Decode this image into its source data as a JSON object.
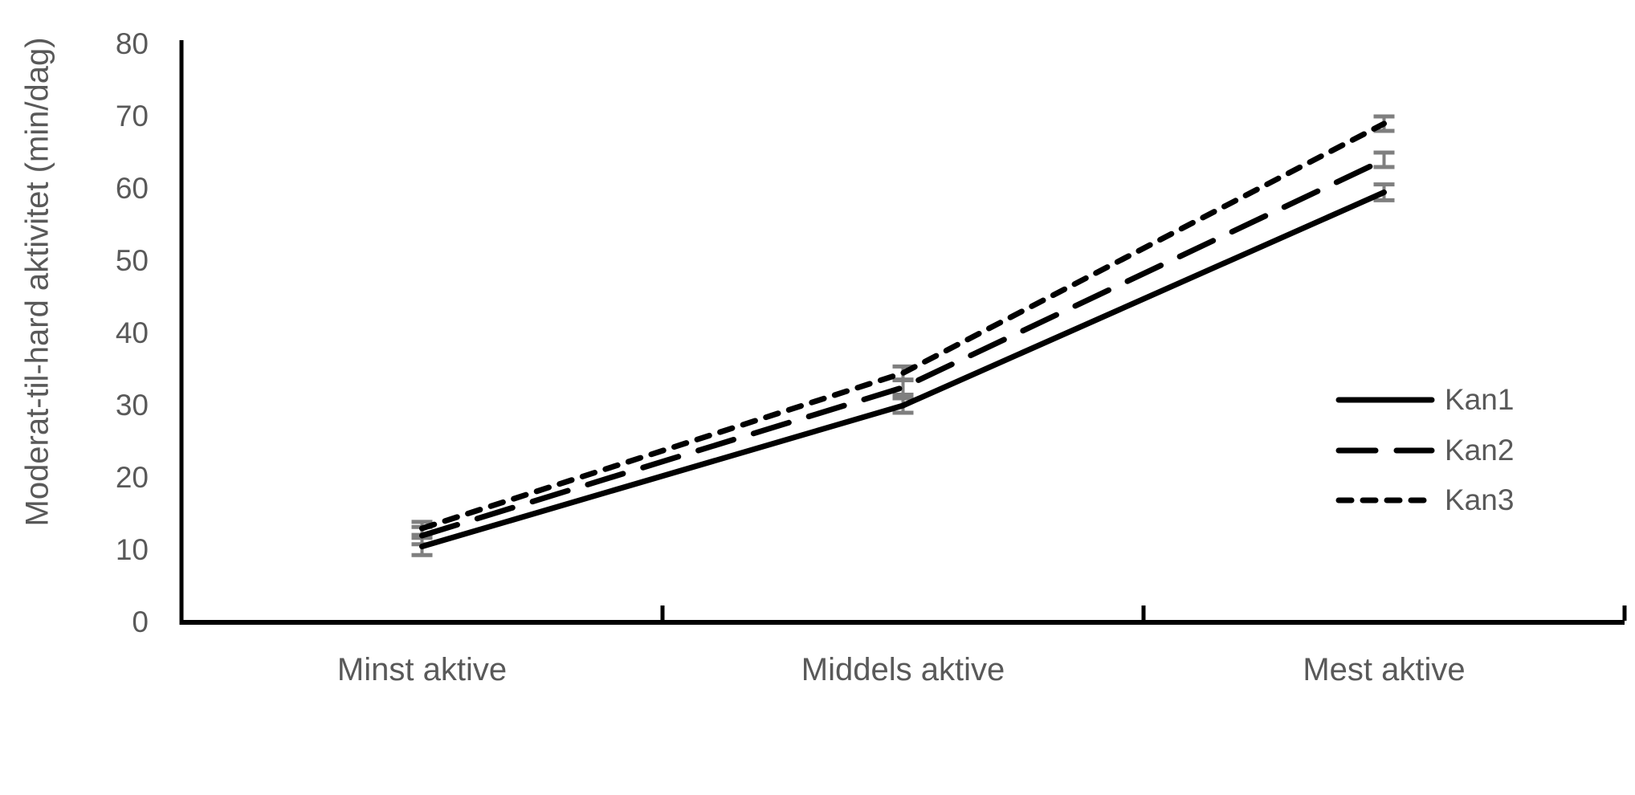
{
  "chart_data": {
    "type": "line",
    "title": "",
    "xlabel": "",
    "ylabel": "Moderat-til-hard aktivitet (min/dag)",
    "categories": [
      "Minst aktive",
      "Middels aktive",
      "Mest aktive"
    ],
    "series": [
      {
        "name": "Kan1",
        "line_style": "solid",
        "color": "#000000",
        "values": [
          10.5,
          30.0,
          59.5
        ],
        "error_bars": [
          1.2,
          1.0,
          1.1
        ]
      },
      {
        "name": "Kan2",
        "line_style": "long-dash",
        "color": "#000000",
        "values": [
          12.0,
          32.5,
          64.0
        ],
        "error_bars": [
          1.2,
          1.0,
          1.0
        ]
      },
      {
        "name": "Kan3",
        "line_style": "short-dash",
        "color": "#000000",
        "values": [
          13.0,
          34.5,
          69.0
        ],
        "error_bars": [
          0.9,
          0.9,
          1.0
        ]
      }
    ],
    "ylim": [
      0,
      80
    ],
    "ytick_step": 10,
    "yticks": [
      0,
      10,
      20,
      30,
      40,
      50,
      60,
      70,
      80
    ],
    "grid": false,
    "legend_position": "right",
    "error_bar_color": "#7f7f7f",
    "axis_color": "#000000",
    "text_color": "#595959",
    "background_color": "#ffffff"
  }
}
